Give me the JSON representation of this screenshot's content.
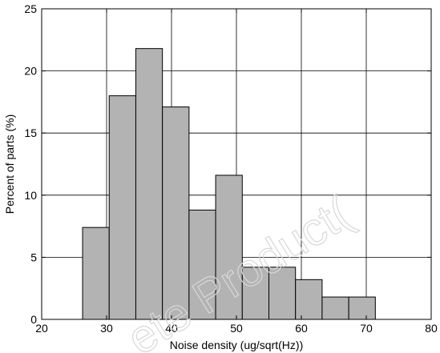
{
  "chart_data": {
    "type": "bar",
    "xlabel": "Noise density (ug/sqrt(Hz))",
    "ylabel": "Percent of parts (%)",
    "xlim": [
      20,
      80
    ],
    "ylim": [
      0,
      25
    ],
    "grid": true,
    "xticks": [
      20,
      30,
      40,
      50,
      60,
      70,
      80
    ],
    "yticks": [
      0,
      5,
      10,
      15,
      20,
      25
    ],
    "bin_edges": [
      26.3,
      30.4,
      34.5,
      38.6,
      42.7,
      46.8,
      50.9,
      55.0,
      59.1,
      63.2,
      67.3,
      71.4
    ],
    "values": [
      7.4,
      18.0,
      21.8,
      17.1,
      8.8,
      11.6,
      4.2,
      4.2,
      3.2,
      1.8,
      1.8
    ],
    "bar_color": "#b3b3b3",
    "watermark": "ete Product("
  }
}
